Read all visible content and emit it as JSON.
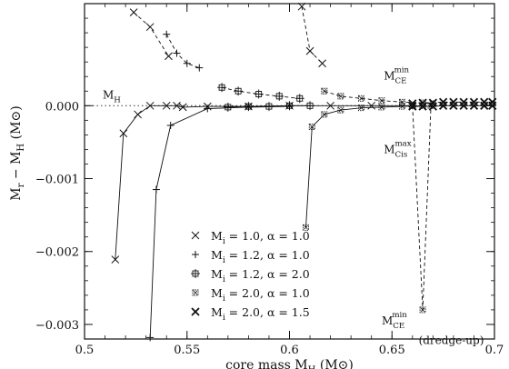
{
  "chart_data": {
    "type": "line",
    "title": "",
    "xlabel": "core mass  M_H  (M_⊙)",
    "ylabel": "M_r − M_H  (M_⊙)",
    "xlim": [
      0.5,
      0.7
    ],
    "ylim": [
      -0.0032,
      0.0014
    ],
    "x_ticks": [
      0.5,
      0.55,
      0.6,
      0.65,
      0.7
    ],
    "x_tick_labels": [
      "0.5",
      "0.55",
      "0.6",
      "0.65",
      "0.7"
    ],
    "y_ticks": [
      0.0,
      -0.001,
      -0.002,
      -0.003
    ],
    "y_tick_labels": [
      "0.000",
      "−0.001",
      "−0.002",
      "−0.003"
    ],
    "grid": false,
    "legend_position": "bottom-left",
    "reference_line": {
      "label": "M_H",
      "y": 0.0,
      "style": "dotted"
    },
    "annotations": [
      {
        "text": "M_CE^min",
        "x": 0.646,
        "y": 0.00036
      },
      {
        "text": "M_Cis^max",
        "x": 0.646,
        "y": -0.00065
      },
      {
        "text": "M_CE^min",
        "x": 0.645,
        "y": -0.003
      },
      {
        "text": "(dredge-up)",
        "x": 0.663,
        "y": -0.00327
      }
    ],
    "series": [
      {
        "name": "M_i = 1.0, α = 1.0",
        "marker": "x",
        "curves": [
          {
            "style": "solid",
            "x": [
              0.515,
              0.519,
              0.526,
              0.532,
              0.54,
              0.545,
              0.548,
              0.56,
              0.58,
              0.6,
              0.62,
              0.64,
              0.66
            ],
            "y": [
              -0.00211,
              -0.00038,
              -0.00012,
              0.0,
              0.0,
              0.0,
              -2e-05,
              -1e-05,
              -1e-05,
              0.0,
              0.0,
              0.0,
              0.0
            ]
          },
          {
            "style": "dashed",
            "x": [
              0.524,
              0.532,
              0.541
            ],
            "y": [
              0.00128,
              0.00108,
              0.00068
            ]
          },
          {
            "style": "dashed",
            "x": [
              0.606,
              0.61,
              0.616
            ],
            "y": [
              0.00136,
              0.00075,
              0.00058
            ]
          }
        ]
      },
      {
        "name": "M_i = 1.2, α = 1.0",
        "marker": "plus",
        "curves": [
          {
            "style": "solid",
            "x": [
              0.532,
              0.535,
              0.542,
              0.56,
              0.58,
              0.6
            ],
            "y": [
              -0.00318,
              -0.00115,
              -0.00027,
              -4e-05,
              -2e-05,
              -1e-05
            ]
          },
          {
            "style": "dashed",
            "x": [
              0.54,
              0.545,
              0.55,
              0.556
            ],
            "y": [
              0.00098,
              0.00072,
              0.00058,
              0.00052
            ]
          }
        ]
      },
      {
        "name": "M_i = 1.2, α = 2.0",
        "marker": "boxplus",
        "curves": [
          {
            "style": "solid",
            "x": [
              0.57,
              0.58,
              0.59,
              0.6,
              0.61
            ],
            "y": [
              -2e-05,
              -1e-05,
              -1e-05,
              0.0,
              0.0
            ]
          },
          {
            "style": "dashed",
            "x": [
              0.567,
              0.575,
              0.585,
              0.595,
              0.605
            ],
            "y": [
              0.00025,
              0.0002,
              0.00016,
              0.00013,
              0.0001
            ]
          }
        ]
      },
      {
        "name": "M_i = 2.0, α = 1.0",
        "marker": "asterisk",
        "curves": [
          {
            "style": "solid",
            "x": [
              0.608,
              0.611,
              0.617,
              0.625,
              0.635,
              0.645,
              0.655,
              0.665
            ],
            "y": [
              -0.00167,
              -0.00029,
              -0.00012,
              -6e-05,
              -3e-05,
              -2e-05,
              -1e-05,
              0.0
            ]
          },
          {
            "style": "dashed",
            "x": [
              0.617,
              0.625,
              0.635,
              0.645,
              0.655,
              0.665,
              0.67
            ],
            "y": [
              0.0002,
              0.00013,
              0.0001,
              7e-05,
              5e-05,
              4e-05,
              3e-05
            ]
          },
          {
            "style": "dashed",
            "x": [
              0.66,
              0.665,
              0.669
            ],
            "y": [
              0.0,
              -0.0028,
              0.0
            ]
          }
        ]
      },
      {
        "name": "M_i = 2.0, α = 1.5",
        "marker": "boldx",
        "curves": [
          {
            "style": "solid",
            "x": [
              0.66,
              0.665,
              0.67,
              0.675,
              0.68,
              0.685,
              0.69,
              0.695,
              0.699
            ],
            "y": [
              -1e-05,
              -1e-05,
              -1e-05,
              0.0,
              0.0,
              0.0,
              0.0,
              0.0,
              0.0
            ]
          },
          {
            "style": "dashed",
            "x": [
              0.66,
              0.665,
              0.67,
              0.675,
              0.68,
              0.685,
              0.69,
              0.695,
              0.699
            ],
            "y": [
              3e-05,
              4e-05,
              4e-05,
              5e-05,
              5e-05,
              5e-05,
              5e-05,
              5e-05,
              5e-05
            ]
          }
        ]
      }
    ],
    "legend": [
      {
        "marker": "x",
        "label": "M_i = 1.0,  α = 1.0"
      },
      {
        "marker": "plus",
        "label": "M_i = 1.2,  α = 1.0"
      },
      {
        "marker": "boxplus",
        "label": "M_i = 1.2,  α = 2.0"
      },
      {
        "marker": "asterisk",
        "label": "M_i = 2.0,  α = 1.0"
      },
      {
        "marker": "boldx",
        "label": "M_i = 2.0,  α = 1.5"
      }
    ]
  }
}
